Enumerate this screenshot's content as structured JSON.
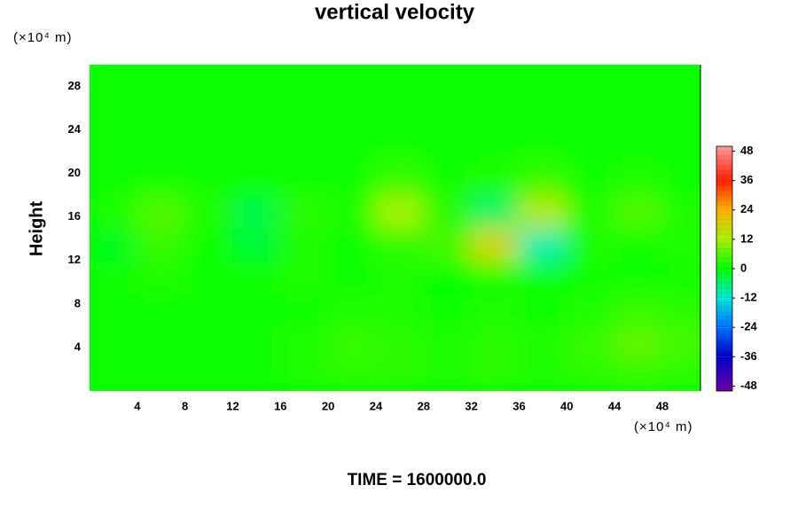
{
  "chart_data": {
    "type": "contour",
    "title": "vertical velocity",
    "y_label": "Height",
    "y_unit_label": "(×10⁴ m)",
    "x_unit_label": "(×10⁴ m)",
    "footer": "TIME = 1600000.0",
    "xlim": [
      0,
      51.2
    ],
    "ylim": [
      0,
      30
    ],
    "xticks": [
      4,
      8,
      12,
      16,
      20,
      24,
      28,
      32,
      36,
      40,
      44,
      48
    ],
    "yticks": [
      4,
      8,
      12,
      16,
      20,
      24,
      28
    ],
    "x": [
      2,
      6,
      10,
      14,
      18,
      22,
      26,
      30,
      34,
      38,
      42,
      46,
      50
    ],
    "y": [
      1.5,
      4.5,
      7.5,
      10.5,
      13.5,
      16.5,
      19.5,
      22.5,
      25.5,
      28.5
    ],
    "z": [
      [
        1,
        1,
        1,
        1,
        2,
        3,
        3,
        2,
        3,
        2,
        3,
        4,
        3
      ],
      [
        1,
        1,
        1,
        1,
        2,
        4,
        3,
        2,
        3,
        2,
        4,
        7,
        5
      ],
      [
        1,
        1,
        1,
        1,
        1,
        2,
        2,
        1,
        2,
        1,
        2,
        4,
        3
      ],
      [
        1,
        2,
        1,
        1,
        2,
        1,
        2,
        0,
        1,
        1,
        1,
        1,
        1
      ],
      [
        -2,
        4,
        1,
        -3,
        2,
        1,
        3,
        5,
        18,
        -10,
        2,
        1,
        2
      ],
      [
        2,
        6,
        2,
        -4,
        3,
        2,
        12,
        3,
        -6,
        14,
        2,
        6,
        2
      ],
      [
        1,
        1,
        1,
        1,
        1,
        1,
        4,
        1,
        2,
        4,
        1,
        2,
        1
      ],
      [
        1,
        1,
        1,
        1,
        1,
        1,
        1,
        1,
        1,
        1,
        1,
        1,
        1
      ],
      [
        1,
        1,
        1,
        1,
        1,
        1,
        1,
        1,
        1,
        1,
        1,
        1,
        1
      ],
      [
        1,
        1,
        1,
        1,
        1,
        1,
        1,
        1,
        1,
        1,
        1,
        1,
        1
      ]
    ],
    "colorbar": {
      "lim": [
        -50,
        50
      ],
      "ticks": [
        48,
        36,
        24,
        12,
        0,
        -12,
        -24,
        -36,
        -48
      ],
      "colormap": [
        {
          "value": -50,
          "color": "#7000a8"
        },
        {
          "value": -36,
          "color": "#0000c8"
        },
        {
          "value": -24,
          "color": "#0070ff"
        },
        {
          "value": -12,
          "color": "#00e8d8"
        },
        {
          "value": 0,
          "color": "#00ff00"
        },
        {
          "value": 12,
          "color": "#a8f000"
        },
        {
          "value": 24,
          "color": "#ffb000"
        },
        {
          "value": 36,
          "color": "#ff2000"
        },
        {
          "value": 50,
          "color": "#ff9898"
        }
      ]
    }
  }
}
